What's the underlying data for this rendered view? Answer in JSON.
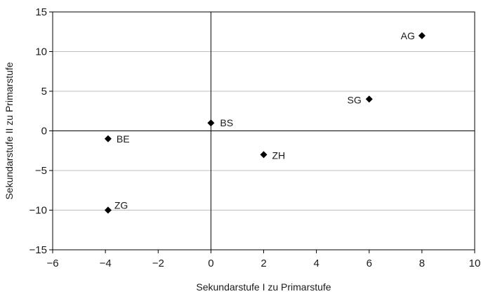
{
  "chart_data": {
    "type": "scatter",
    "title": "",
    "xlabel": "Sekundarstufe I zu Primarstufe",
    "ylabel": "Sekundarstufe II zu Primarstufe",
    "xlim": [
      -6,
      10
    ],
    "ylim": [
      -15,
      15
    ],
    "x_ticks": [
      "−6",
      "−4",
      "−2",
      "0",
      "2",
      "4",
      "6",
      "8",
      "10"
    ],
    "y_ticks": [
      "15",
      "10",
      "5",
      "0",
      "−5",
      "−10",
      "−15"
    ],
    "grid": "horizontal",
    "points": [
      {
        "label": "AG",
        "x": 8,
        "y": 12
      },
      {
        "label": "SG",
        "x": 6,
        "y": 4
      },
      {
        "label": "BS",
        "x": 0,
        "y": 1
      },
      {
        "label": "BE",
        "x": -3.9,
        "y": -1
      },
      {
        "label": "ZH",
        "x": 2,
        "y": -3
      },
      {
        "label": "ZG",
        "x": -3.9,
        "y": -10
      }
    ],
    "colors": {
      "marker": "#000000",
      "grid": "#bfbfbf",
      "axis": "#000000"
    }
  }
}
